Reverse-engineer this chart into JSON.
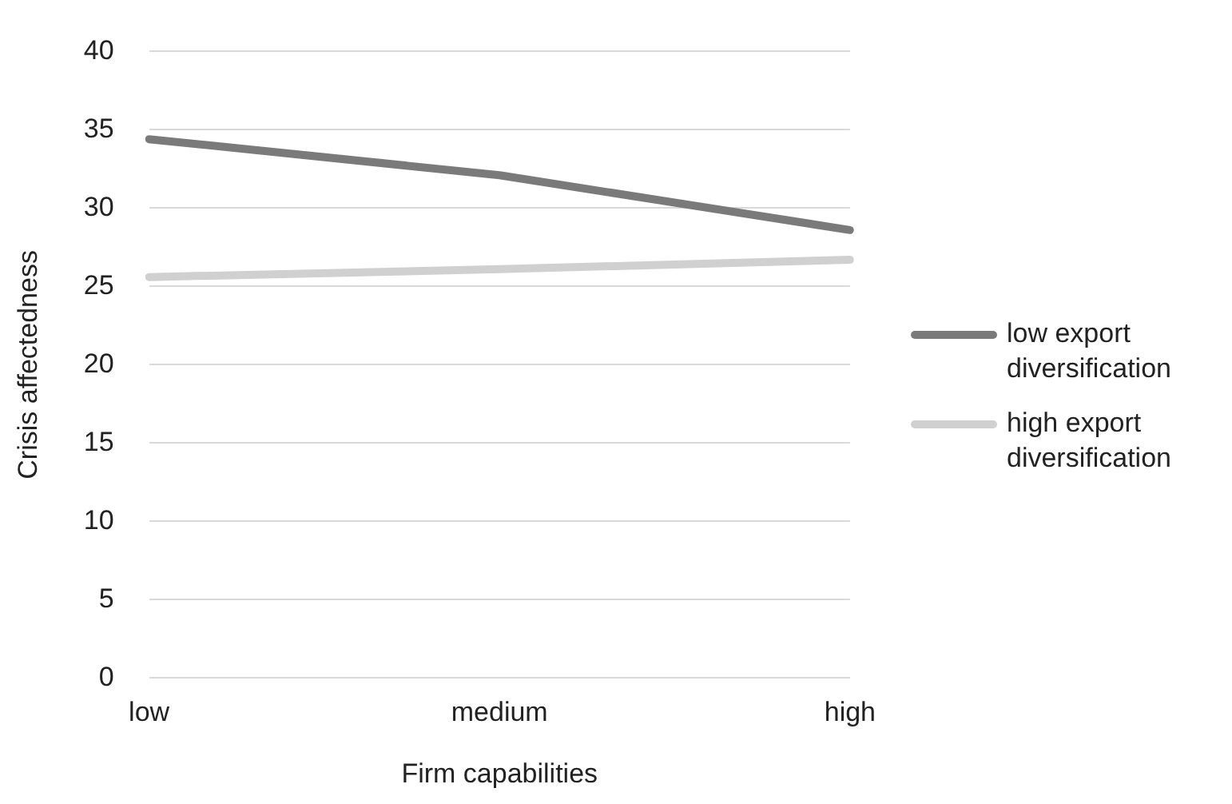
{
  "chart_data": {
    "type": "line",
    "xlabel": "Firm capabilities",
    "ylabel": "Crisis affectedness",
    "categories": [
      "low",
      "medium",
      "high"
    ],
    "series": [
      {
        "name": "low export diversification",
        "color": "#7a7a7a",
        "values": [
          34.4,
          32.1,
          28.6
        ]
      },
      {
        "name": "high export diversification",
        "color": "#d0d0d0",
        "values": [
          25.6,
          26.1,
          26.7
        ]
      }
    ],
    "ylim": [
      0,
      40
    ],
    "yticks": [
      0,
      5,
      10,
      15,
      20,
      25,
      30,
      35,
      40
    ],
    "grid": "y",
    "legend": "right",
    "marker": "none",
    "line_style": "solid"
  }
}
